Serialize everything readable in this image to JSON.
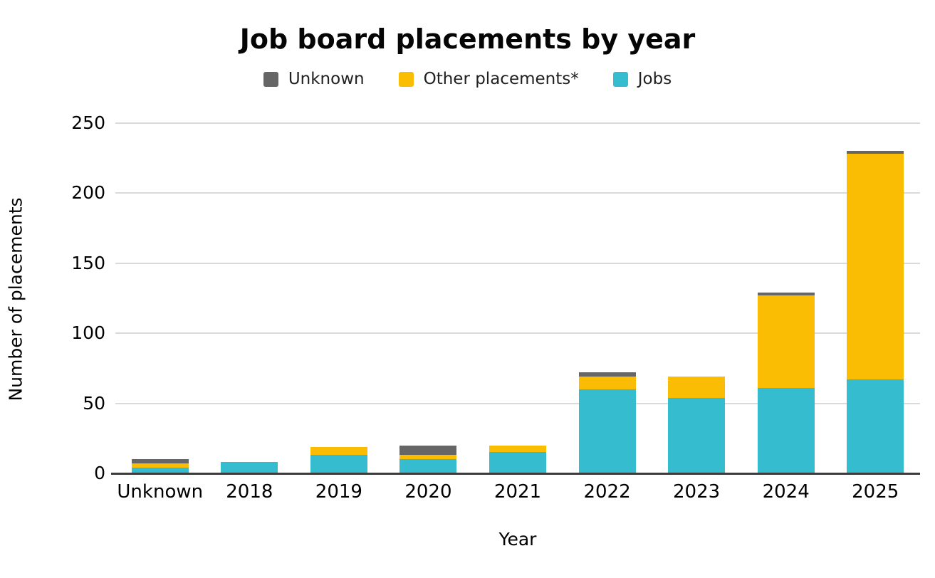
{
  "chart_data": {
    "type": "bar",
    "stacked": true,
    "title": "Job board placements by year",
    "xlabel": "Year",
    "ylabel": "Number of placements",
    "ylim": [
      0,
      250
    ],
    "ytick_step": 50,
    "yticks": [
      0,
      50,
      100,
      150,
      200,
      250
    ],
    "grid": true,
    "legend_position": "top",
    "categories": [
      "Unknown",
      "2018",
      "2019",
      "2020",
      "2021",
      "2022",
      "2023",
      "2024",
      "2025"
    ],
    "series": [
      {
        "name": "Jobs",
        "color": "#35bcce",
        "values": [
          4,
          8,
          13,
          10,
          15,
          60,
          54,
          61,
          67
        ]
      },
      {
        "name": "Other placements*",
        "color": "#fbbc04",
        "values": [
          3,
          0,
          6,
          3,
          5,
          9,
          15,
          66,
          161
        ]
      },
      {
        "name": "Unknown",
        "color": "#666666",
        "values": [
          3,
          0,
          0,
          7,
          0,
          3,
          0,
          2,
          2
        ]
      }
    ],
    "stack_totals": [
      10,
      8,
      19,
      20,
      20,
      72,
      69,
      129,
      230
    ],
    "legend_order": [
      "Unknown",
      "Other placements*",
      "Jobs"
    ],
    "colors": {
      "gridline": "#dadada",
      "axis_line": "#3b3b3b",
      "title_text": "#050505",
      "label_text": "#000000",
      "legend_text": "#212121",
      "background": "#ffffff"
    }
  }
}
